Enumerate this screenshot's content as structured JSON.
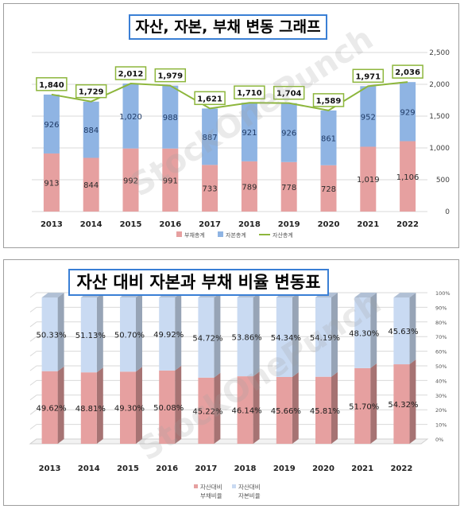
{
  "watermark": "StockOnePunch",
  "chart_data": [
    {
      "type": "bar",
      "stacked": true,
      "title": "자산, 자본, 부채 변동 그래프",
      "categories": [
        "2013",
        "2014",
        "2015",
        "2016",
        "2017",
        "2018",
        "2019",
        "2020",
        "2021",
        "2022"
      ],
      "series": [
        {
          "name": "부채총계",
          "type": "bar",
          "color": "#e6a0a0",
          "values": [
            913,
            844,
            992,
            991,
            733,
            789,
            778,
            728,
            1019,
            1106
          ],
          "labels": [
            "913",
            "844",
            "992",
            "991",
            "733",
            "789",
            "778",
            "728",
            "1,019",
            "1,106"
          ]
        },
        {
          "name": "자본총계",
          "type": "bar",
          "color": "#8fb4e3",
          "values": [
            926,
            884,
            1020,
            988,
            887,
            921,
            926,
            861,
            952,
            929
          ],
          "labels": [
            "926",
            "884",
            "1,020",
            "988",
            "887",
            "921",
            "926",
            "861",
            "952",
            "929"
          ]
        },
        {
          "name": "자산총계",
          "type": "line",
          "color": "#8db63c",
          "values": [
            1840,
            1729,
            2012,
            1979,
            1621,
            1710,
            1704,
            1589,
            1971,
            2036
          ],
          "labels": [
            "1,840",
            "1,729",
            "2,012",
            "1,979",
            "1,621",
            "1,710",
            "1,704",
            "1,589",
            "1,971",
            "2,036"
          ]
        }
      ],
      "ylim": [
        0,
        2500
      ],
      "y_ticks": [
        "0",
        "500",
        "1,000",
        "1,500",
        "2,000",
        "2,500"
      ],
      "y_axis_side": "right",
      "legend_position": "bottom",
      "grid": true
    },
    {
      "type": "bar",
      "stacked": true,
      "percent": true,
      "three_d": true,
      "title": "자산 대비 자본과 부채 비율 변동표",
      "categories": [
        "2013",
        "2014",
        "2015",
        "2016",
        "2017",
        "2018",
        "2019",
        "2020",
        "2021",
        "2022"
      ],
      "series": [
        {
          "name": "자산대비 부채비율",
          "color": "#e6a0a0",
          "values": [
            49.62,
            48.81,
            49.3,
            50.08,
            45.22,
            46.14,
            45.66,
            45.81,
            51.7,
            54.32
          ],
          "labels": [
            "49.62%",
            "48.81%",
            "49.30%",
            "50.08%",
            "45.22%",
            "46.14%",
            "45.66%",
            "45.81%",
            "51.70%",
            "54.32%"
          ]
        },
        {
          "name": "자산대비 자본비율",
          "color": "#c9daf2",
          "values": [
            50.33,
            51.13,
            50.7,
            49.92,
            54.72,
            53.86,
            54.34,
            54.19,
            48.3,
            45.63
          ],
          "labels": [
            "50.33%",
            "51.13%",
            "50.70%",
            "49.92%",
            "54.72%",
            "53.86%",
            "54.34%",
            "54.19%",
            "48.30%",
            "45.63%"
          ]
        }
      ],
      "ylim": [
        0,
        100
      ],
      "y_ticks": [
        "0%",
        "10%",
        "20%",
        "30%",
        "40%",
        "50%",
        "60%",
        "70%",
        "80%",
        "90%",
        "100%"
      ],
      "y_axis_side": "right",
      "legend_position": "bottom",
      "legend_entries": [
        {
          "swatch_color": "#e6a0a0",
          "line1": "자산대비",
          "line2": "부채비율"
        },
        {
          "swatch_color": "#c9daf2",
          "line1": "자산대비",
          "line2": "자본비율"
        }
      ],
      "grid": true
    }
  ]
}
